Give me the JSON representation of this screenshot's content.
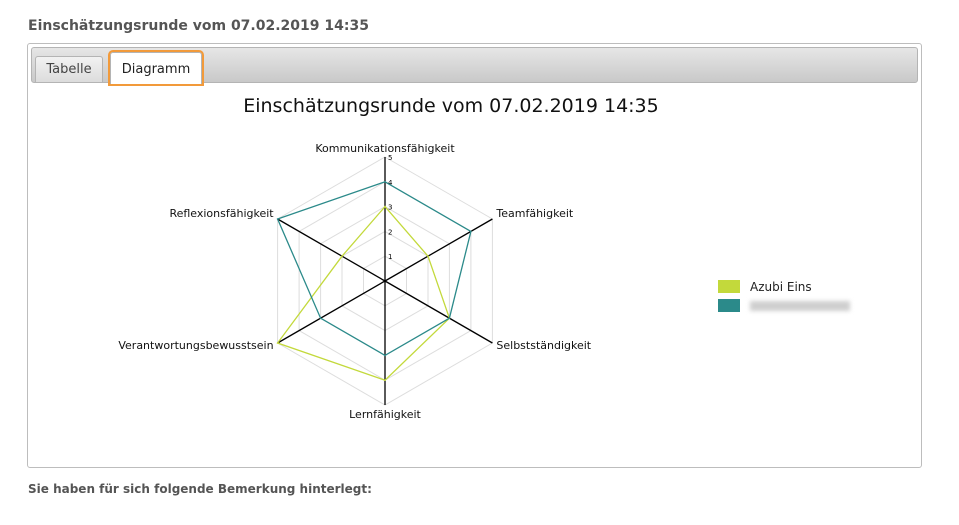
{
  "page": {
    "title": "Einschätzungsrunde vom 07.02.2019 14:35",
    "comment_label": "Sie haben für sich folgende Bemerkung hinterlegt:"
  },
  "tabs": [
    {
      "label": "Tabelle",
      "active": false
    },
    {
      "label": "Diagramm",
      "active": true
    }
  ],
  "chart_data": {
    "type": "radar",
    "title": "Einschätzungsrunde vom 07.02.2019 14:35",
    "categories": [
      "Kommunikationsfähigkeit",
      "Teamfähigkeit",
      "Selbstständigkeit",
      "Lernfähigkeit",
      "Verantwortungsbewusstsein",
      "Reflexionsfähigkeit"
    ],
    "scale": {
      "min": 0,
      "max": 5,
      "ticks": [
        "1",
        "2",
        "3",
        "4",
        "5"
      ]
    },
    "grid": true,
    "legend_position": "right",
    "series": [
      {
        "name": "Azubi Eins",
        "color": "#c3d93b",
        "values": [
          3,
          2,
          3,
          4,
          5,
          2
        ]
      },
      {
        "name": "",
        "color": "#2b8a8a",
        "values": [
          4,
          4,
          3,
          3,
          3,
          5
        ]
      }
    ]
  }
}
